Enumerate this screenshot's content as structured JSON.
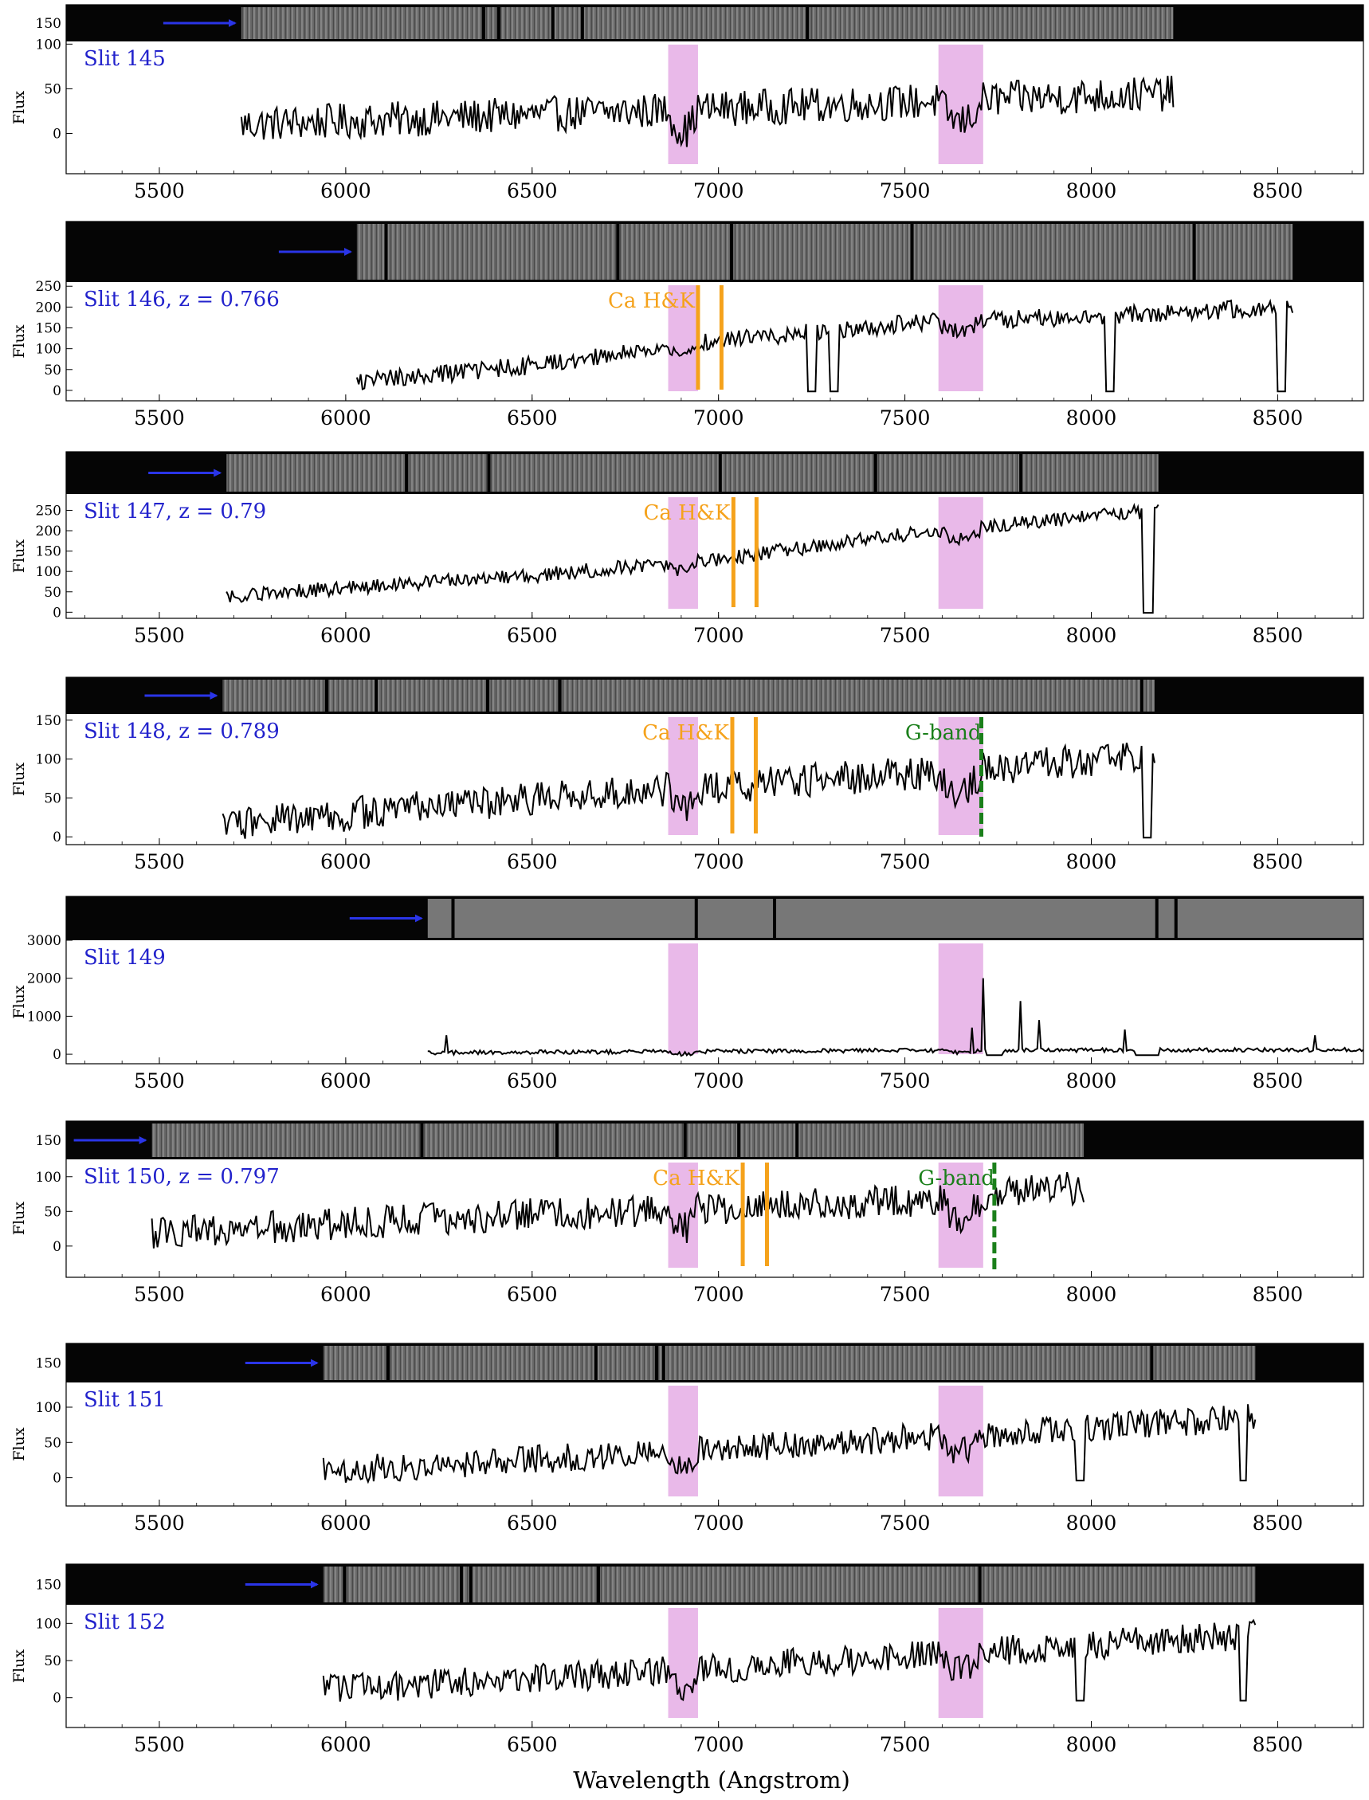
{
  "figure": {
    "xlabel": "Wavelength (Angstrom)",
    "xlim": [
      5250,
      8730
    ],
    "xticks": [
      5500,
      6000,
      6500,
      7000,
      7500,
      8000,
      8500
    ],
    "ylabel": "Flux",
    "telluric_bands": [
      [
        6865,
        6945
      ],
      [
        7590,
        7710
      ]
    ],
    "colors": {
      "spectrum": "#000000",
      "telluric": "#e9b9e9",
      "ca_hk": "#f5a21b",
      "g_band": "#1a7f1a",
      "label": "#2222cc",
      "arrow": "#2a35e8"
    }
  },
  "chart_data": [
    {
      "type": "line",
      "slit": "145",
      "label": "Slit 145",
      "ylim": [
        -45,
        103
      ],
      "yticks": [
        0,
        50,
        100
      ],
      "image_yticks": [
        150
      ],
      "range": [
        5720,
        8220
      ],
      "noise": 20,
      "points": [
        [
          5720,
          10
        ],
        [
          8220,
          45
        ]
      ],
      "arrow_x": 5720,
      "ca_hk": null,
      "g_band": null,
      "dips": []
    },
    {
      "type": "line",
      "slit": "146",
      "z": "0.766",
      "label": "Slit 146, z = 0.766",
      "ylim": [
        -25,
        260
      ],
      "yticks": [
        0,
        50,
        100,
        150,
        200,
        250
      ],
      "image_yticks": [],
      "range": [
        6030,
        8540
      ],
      "noise": 22,
      "points": [
        [
          6030,
          20
        ],
        [
          6500,
          60
        ],
        [
          7000,
          120
        ],
        [
          7500,
          160
        ],
        [
          8540,
          200
        ]
      ],
      "arrow_x": 6030,
      "ca_hk": {
        "label": "Ca H&K",
        "lines": [
          6945,
          7008
        ]
      },
      "g_band": null,
      "dips": [
        [
          7240,
          7260
        ],
        [
          7300,
          7320
        ],
        [
          8040,
          8060
        ],
        [
          8500,
          8520
        ]
      ]
    },
    {
      "type": "line",
      "slit": "147",
      "z": "0.79",
      "label": "Slit 147, z = 0.79",
      "ylim": [
        -15,
        290
      ],
      "yticks": [
        0,
        50,
        100,
        150,
        200,
        250
      ],
      "image_yticks": [],
      "range": [
        5680,
        8180
      ],
      "noise": 18,
      "points": [
        [
          5680,
          40
        ],
        [
          6500,
          90
        ],
        [
          7000,
          130
        ],
        [
          7500,
          190
        ],
        [
          8180,
          250
        ]
      ],
      "arrow_x": 5680,
      "ca_hk": {
        "label": "Ca H&K",
        "lines": [
          7040,
          7102
        ]
      },
      "g_band": null,
      "dips": [
        [
          8140,
          8165
        ]
      ]
    },
    {
      "type": "line",
      "slit": "148",
      "z": "0.789",
      "label": "Slit 148, z = 0.789",
      "ylim": [
        -10,
        158
      ],
      "yticks": [
        0,
        50,
        100,
        150
      ],
      "image_yticks": [],
      "range": [
        5670,
        8170
      ],
      "noise": 22,
      "points": [
        [
          5670,
          15
        ],
        [
          6500,
          50
        ],
        [
          7500,
          80
        ],
        [
          8170,
          105
        ]
      ],
      "arrow_x": 5670,
      "ca_hk": {
        "label": "Ca H&K",
        "lines": [
          7037,
          7100
        ]
      },
      "g_band": {
        "label": "G-band",
        "line": 7705
      },
      "dips": [
        [
          8140,
          8160
        ]
      ]
    },
    {
      "type": "line",
      "slit": "149",
      "label": "Slit 149",
      "ylim": [
        -250,
        3000
      ],
      "yticks": [
        0,
        1000,
        2000,
        3000
      ],
      "image_yticks": [],
      "range": [
        6220,
        8730
      ],
      "noise": 55,
      "points": [
        [
          6220,
          40
        ],
        [
          7500,
          100
        ],
        [
          8730,
          120
        ]
      ],
      "arrow_x": 6220,
      "ca_hk": null,
      "g_band": null,
      "peaks": [
        [
          6270,
          500
        ],
        [
          7680,
          700
        ],
        [
          7710,
          2000
        ],
        [
          7810,
          1400
        ],
        [
          7860,
          900
        ],
        [
          8090,
          650
        ],
        [
          8600,
          500
        ]
      ],
      "dips": [
        [
          7720,
          7760
        ],
        [
          8120,
          8180
        ]
      ]
    },
    {
      "type": "line",
      "slit": "150",
      "z": "0.797",
      "label": "Slit 150, z = 0.797",
      "ylim": [
        -45,
        125
      ],
      "yticks": [
        0,
        50,
        100,
        150
      ],
      "image_yticks": [
        150
      ],
      "range": [
        5480,
        7980
      ],
      "noise": 24,
      "points": [
        [
          5480,
          20
        ],
        [
          6500,
          45
        ],
        [
          7500,
          65
        ],
        [
          7980,
          85
        ]
      ],
      "arrow_x": 5480,
      "ca_hk": {
        "label": "Ca H&K",
        "lines": [
          7065,
          7130
        ]
      },
      "g_band": {
        "label": "G-band",
        "line": 7740
      },
      "dips": []
    },
    {
      "type": "line",
      "slit": "151",
      "label": "Slit 151",
      "ylim": [
        -40,
        135
      ],
      "yticks": [
        0,
        50,
        100,
        150
      ],
      "image_yticks": [
        150
      ],
      "range": [
        5940,
        8440
      ],
      "noise": 20,
      "points": [
        [
          5940,
          10
        ],
        [
          7000,
          40
        ],
        [
          8440,
          85
        ]
      ],
      "arrow_x": 5940,
      "ca_hk": null,
      "g_band": null,
      "dips": [
        [
          7960,
          7980
        ],
        [
          8400,
          8415
        ]
      ]
    },
    {
      "type": "line",
      "slit": "152",
      "label": "Slit 152",
      "ylim": [
        -40,
        125
      ],
      "yticks": [
        0,
        50,
        100,
        150
      ],
      "image_yticks": [
        150
      ],
      "range": [
        5940,
        8440
      ],
      "noise": 20,
      "points": [
        [
          5940,
          10
        ],
        [
          7000,
          40
        ],
        [
          8440,
          85
        ]
      ],
      "arrow_x": 5940,
      "ca_hk": null,
      "g_band": null,
      "dips": [
        [
          7960,
          7980
        ],
        [
          8400,
          8415
        ]
      ]
    }
  ]
}
